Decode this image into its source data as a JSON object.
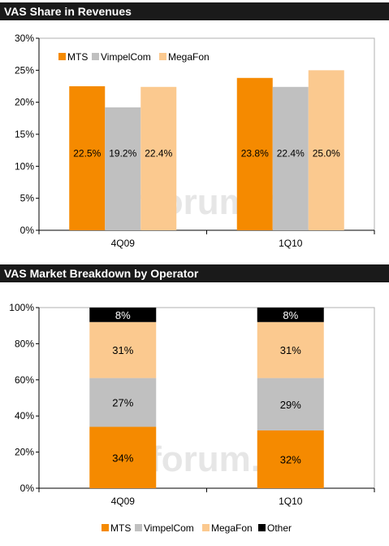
{
  "colors": {
    "MTS": "#f58a00",
    "VimpelCom": "#c0c0c0",
    "MegaFon": "#fbc98f",
    "Other": "#000000",
    "header_bg": "#1a1a1a",
    "watermark": "#e6e6e6"
  },
  "watermark": "mforum.ru",
  "chart_data": [
    {
      "type": "bar",
      "title": "VAS Share in Revenues",
      "categories": [
        "4Q09",
        "1Q10"
      ],
      "series": [
        {
          "name": "MTS",
          "values": [
            22.5,
            23.8
          ]
        },
        {
          "name": "VimpelCom",
          "values": [
            19.2,
            22.4
          ]
        },
        {
          "name": "MegaFon",
          "values": [
            22.4,
            25.0
          ]
        }
      ],
      "data_labels": [
        [
          "22.5%",
          "19.2%",
          "22.4%"
        ],
        [
          "23.8%",
          "22.4%",
          "25.0%"
        ]
      ],
      "ylim": [
        0,
        30
      ],
      "yticks": [
        "0%",
        "5%",
        "10%",
        "15%",
        "20%",
        "25%",
        "30%"
      ],
      "legend": "top-left",
      "grid": false
    },
    {
      "type": "bar",
      "stacked": true,
      "title": "VAS Market Breakdown by Operator",
      "categories": [
        "4Q09",
        "1Q10"
      ],
      "series": [
        {
          "name": "MTS",
          "values": [
            34,
            32
          ]
        },
        {
          "name": "VimpelCom",
          "values": [
            27,
            29
          ]
        },
        {
          "name": "MegaFon",
          "values": [
            31,
            31
          ]
        },
        {
          "name": "Other",
          "values": [
            8,
            8
          ]
        }
      ],
      "ylim": [
        0,
        100
      ],
      "yticks": [
        "0%",
        "20%",
        "40%",
        "60%",
        "80%",
        "100%"
      ],
      "legend": "bottom",
      "grid": false
    }
  ]
}
